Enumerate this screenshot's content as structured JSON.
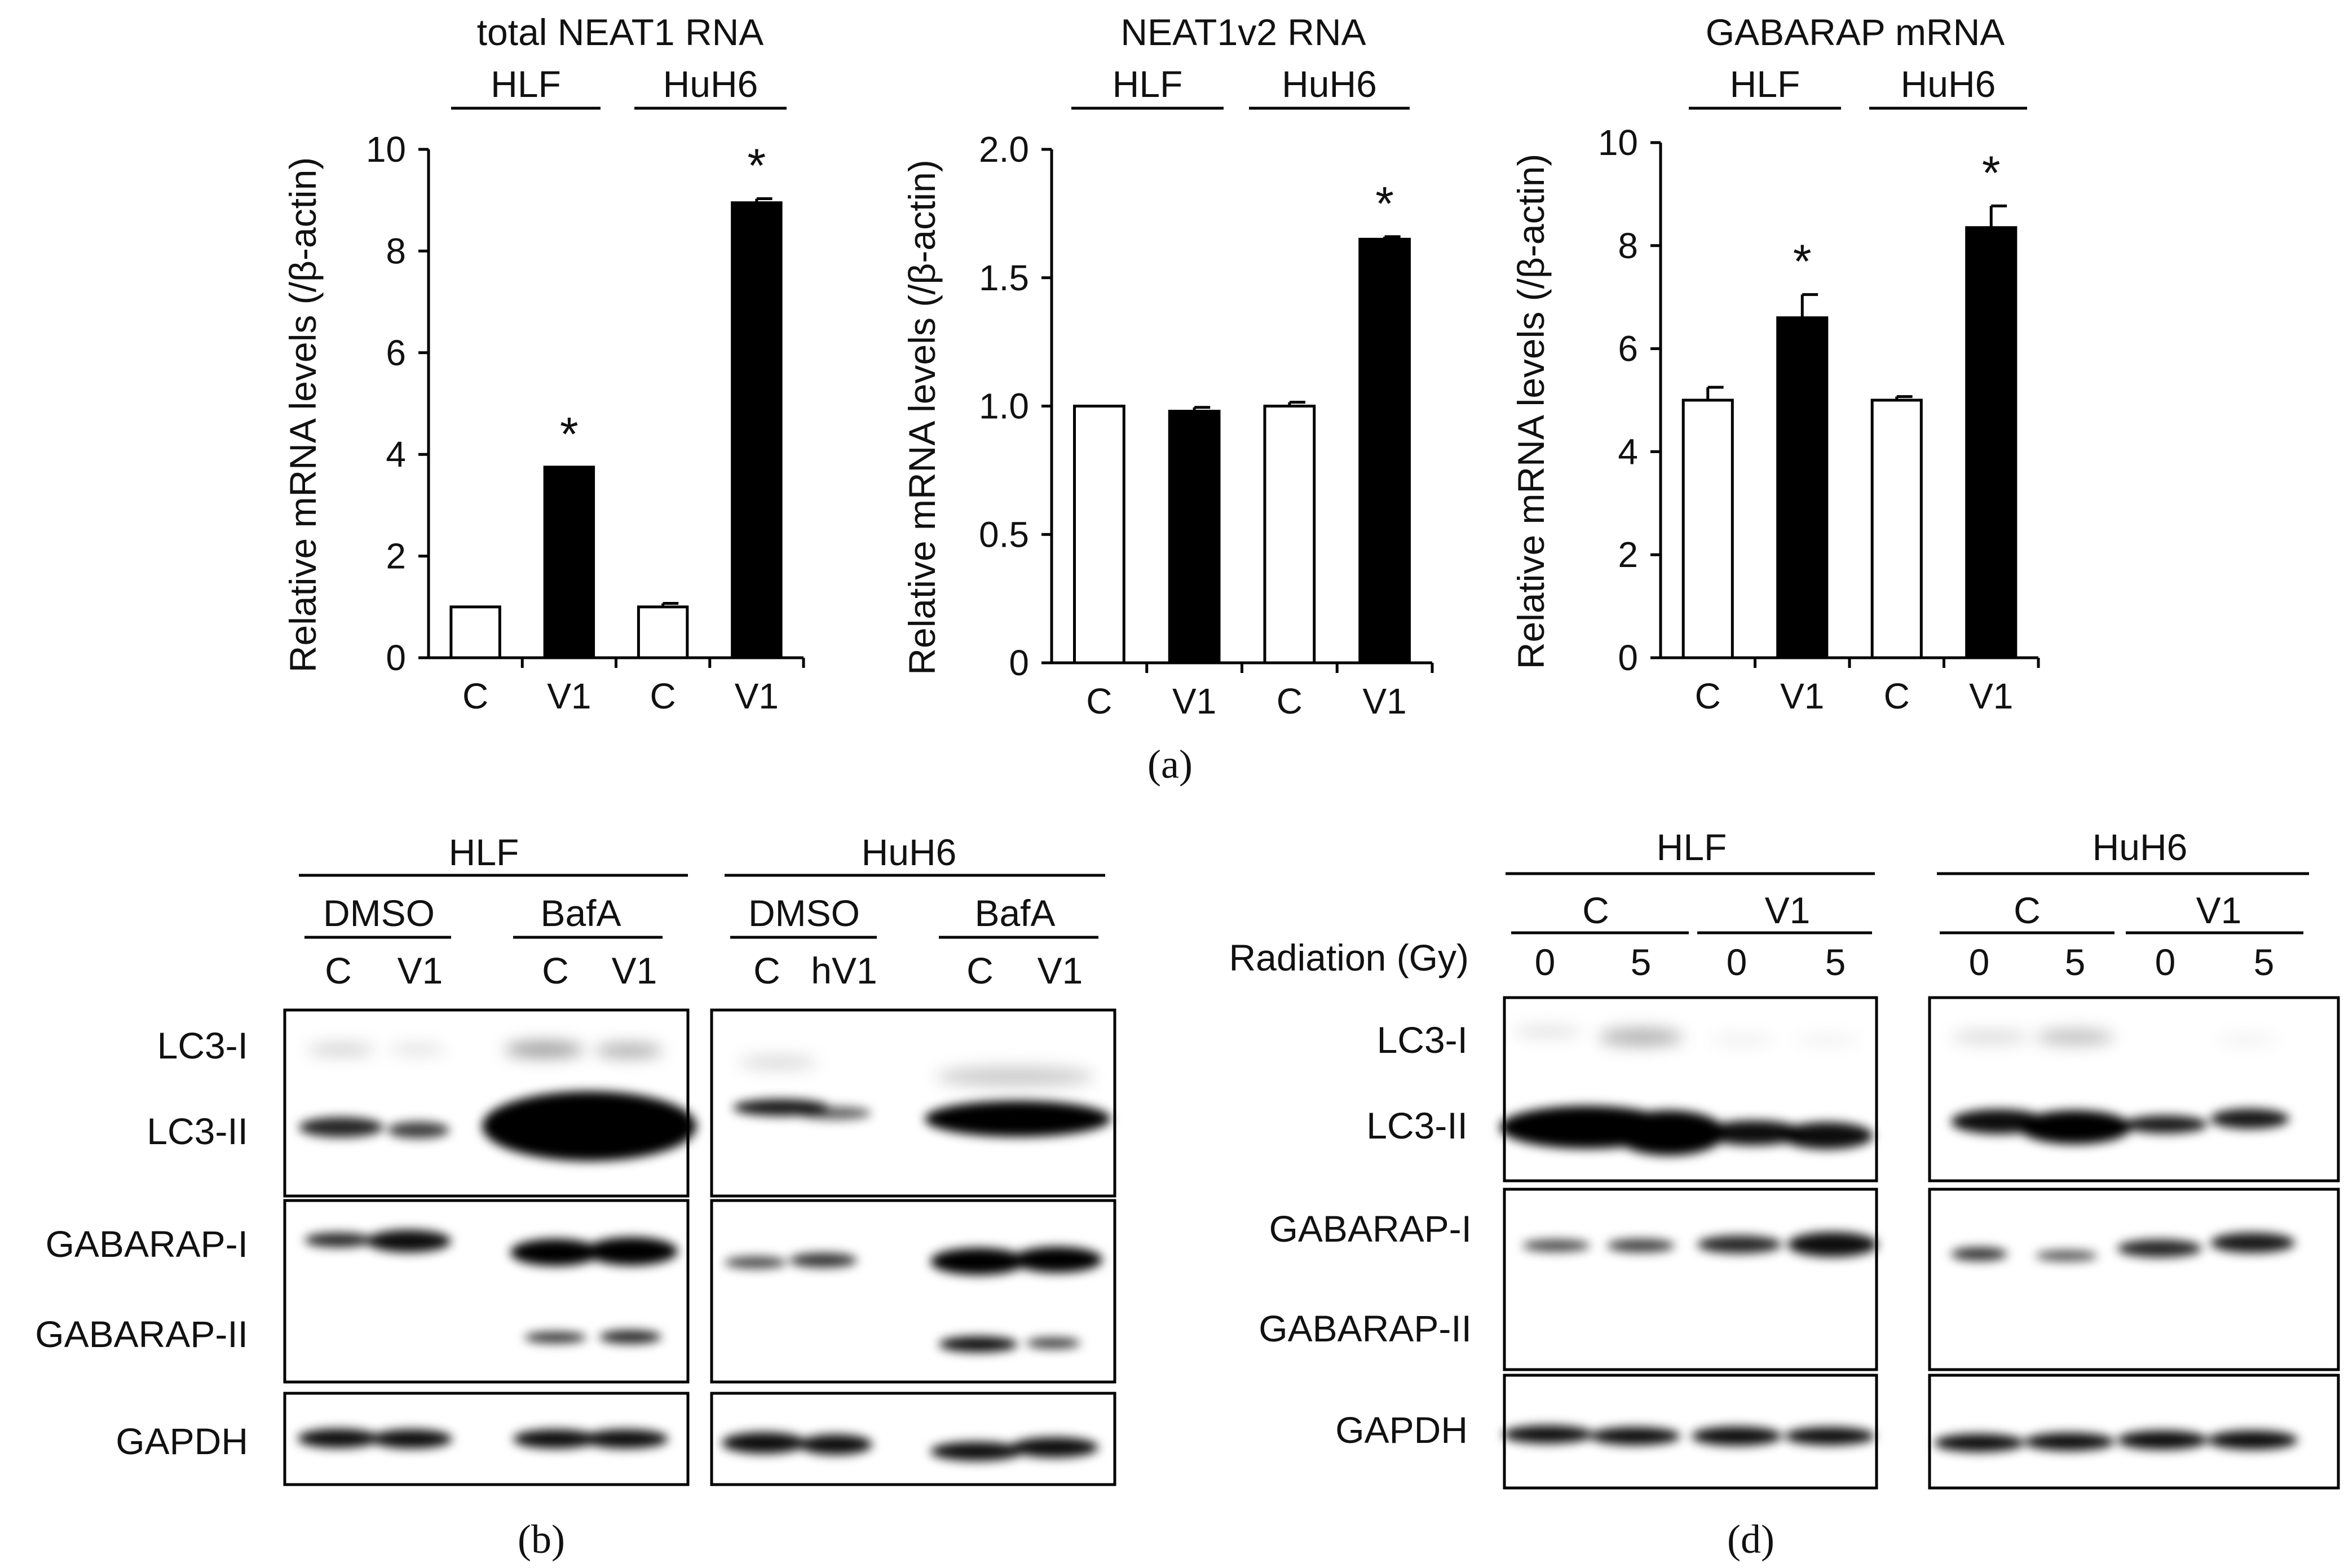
{
  "panel_labels": {
    "a": "(a)",
    "b": "(b)",
    "d": "(d)"
  },
  "chart_data": [
    {
      "type": "bar",
      "title": "total NEAT1 RNA",
      "ylabel": "Relative mRNA levels (/β-actin)",
      "groups": [
        "HLF",
        "HuH6"
      ],
      "categories": [
        "C",
        "V1",
        "C",
        "V1"
      ],
      "values": [
        1.0,
        3.75,
        1.0,
        8.95
      ],
      "errors": [
        0.0,
        0.0,
        0.07,
        0.08
      ],
      "fills": [
        "#ffffff",
        "#000000",
        "#ffffff",
        "#000000"
      ],
      "significance": [
        "",
        "*",
        "",
        "*"
      ],
      "ylim": [
        0,
        10
      ],
      "yticks": [
        0,
        2,
        4,
        6,
        8,
        10
      ],
      "ytick_labels": [
        "0",
        "2",
        "4",
        "6",
        "8",
        "10"
      ]
    },
    {
      "type": "bar",
      "title": "NEAT1v2 RNA",
      "ylabel": "Relative mRNA levels (/β-actin)",
      "groups": [
        "HLF",
        "HuH6"
      ],
      "categories": [
        "C",
        "V1",
        "C",
        "V1"
      ],
      "values": [
        1.0,
        0.98,
        1.0,
        1.65
      ],
      "errors": [
        0.0,
        0.015,
        0.015,
        0.01
      ],
      "fills": [
        "#ffffff",
        "#000000",
        "#ffffff",
        "#000000"
      ],
      "significance": [
        "",
        "",
        "",
        "*"
      ],
      "ylim": [
        0,
        2.0
      ],
      "yticks": [
        0,
        0.5,
        1.0,
        1.5,
        2.0
      ],
      "ytick_labels": [
        "0",
        "0.5",
        "1.0",
        "1.5",
        "2.0"
      ]
    },
    {
      "type": "bar",
      "title": "GABARAP mRNA",
      "ylabel": "Relative mRNA levels (/β-actin)",
      "groups": [
        "HLF",
        "HuH6"
      ],
      "categories": [
        "C",
        "V1",
        "C",
        "V1"
      ],
      "values": [
        5.0,
        6.6,
        5.0,
        8.35
      ],
      "errors": [
        0.25,
        0.45,
        0.07,
        0.42
      ],
      "fills": [
        "#ffffff",
        "#000000",
        "#ffffff",
        "#000000"
      ],
      "significance": [
        "",
        "*",
        "",
        "*"
      ],
      "ylim": [
        0,
        10
      ],
      "yticks": [
        0,
        2,
        4,
        6,
        8,
        10
      ],
      "ytick_labels": [
        "0",
        "2",
        "4",
        "6",
        "8",
        "10"
      ]
    }
  ],
  "blot_b": {
    "cell_lines": [
      "HLF",
      "HuH6"
    ],
    "treatments": [
      "DMSO",
      "BafA",
      "DMSO",
      "BafA"
    ],
    "lanes": [
      "C",
      "V1",
      "C",
      "V1",
      "C",
      "hV1",
      "C",
      "V1"
    ],
    "bands": [
      "LC3-I",
      "LC3-II",
      "GABARAP-I",
      "GABARAP-II",
      "GAPDH"
    ]
  },
  "blot_d": {
    "cell_lines": [
      "HLF",
      "HuH6"
    ],
    "conditions": [
      "C",
      "V1",
      "C",
      "V1"
    ],
    "dose_label": "Radiation (Gy)",
    "doses": [
      "0",
      "5",
      "0",
      "5",
      "0",
      "5",
      "0",
      "5"
    ],
    "bands": [
      "LC3-I",
      "LC3-II",
      "GABARAP-I",
      "GABARAP-II",
      "GAPDH"
    ]
  }
}
